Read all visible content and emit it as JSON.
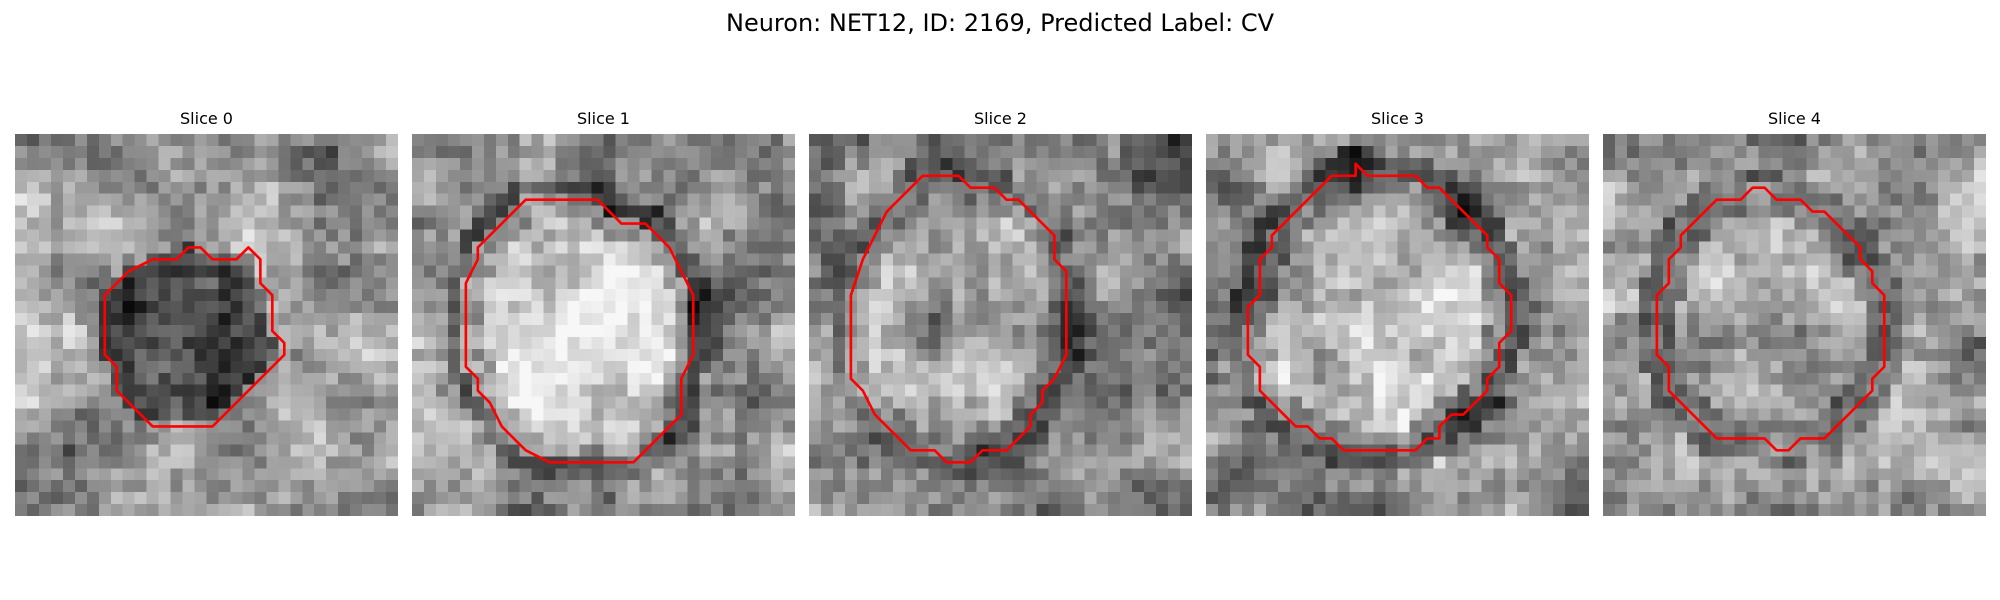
{
  "figure": {
    "title": "Neuron: NET12, ID: 2169, Predicted Label: CV"
  },
  "panels": [
    {
      "title": "Slice 0",
      "contour_color": "#ff0000",
      "contour": [
        [
          14.5,
          9.5
        ],
        [
          15.5,
          9.5
        ],
        [
          16.5,
          10.5
        ],
        [
          18.5,
          10.5
        ],
        [
          19.5,
          9.5
        ],
        [
          20.5,
          10.5
        ],
        [
          20.5,
          12.5
        ],
        [
          21.5,
          13.5
        ],
        [
          21.5,
          16.5
        ],
        [
          22.5,
          17.5
        ],
        [
          22.5,
          18.5
        ],
        [
          21.5,
          19.5
        ],
        [
          20.5,
          20.5
        ],
        [
          19.5,
          21.5
        ],
        [
          17.5,
          23.5
        ],
        [
          16.5,
          24.5
        ],
        [
          11.5,
          24.5
        ],
        [
          9.5,
          22.5
        ],
        [
          8.5,
          21.5
        ],
        [
          8.5,
          19.5
        ],
        [
          7.5,
          18.5
        ],
        [
          7.5,
          13.5
        ],
        [
          9.5,
          11.5
        ],
        [
          11.5,
          10.5
        ],
        [
          13.5,
          10.5
        ]
      ]
    },
    {
      "title": "Slice 1",
      "contour_color": "#ff0000",
      "contour": [
        [
          9.5,
          5.5
        ],
        [
          15.5,
          5.5
        ],
        [
          16.5,
          6.5
        ],
        [
          17.5,
          7.5
        ],
        [
          19.5,
          7.5
        ],
        [
          21.5,
          9.5
        ],
        [
          22.5,
          11.5
        ],
        [
          23.5,
          13.5
        ],
        [
          23.5,
          18.5
        ],
        [
          22.5,
          20.5
        ],
        [
          22.5,
          23.5
        ],
        [
          18.5,
          27.5
        ],
        [
          11.5,
          27.5
        ],
        [
          9.5,
          26.5
        ],
        [
          8.5,
          25.5
        ],
        [
          7.5,
          24.5
        ],
        [
          6.5,
          22.5
        ],
        [
          5.5,
          21.5
        ],
        [
          5.5,
          20.5
        ],
        [
          4.5,
          19.5
        ],
        [
          4.5,
          12.5
        ],
        [
          5.5,
          10.5
        ],
        [
          5.5,
          9.5
        ],
        [
          6.5,
          8.5
        ],
        [
          7.5,
          7.5
        ]
      ]
    },
    {
      "title": "Slice 2",
      "contour_color": "#ff0000",
      "contour": [
        [
          9.5,
          3.5
        ],
        [
          12.5,
          3.5
        ],
        [
          13.5,
          4.5
        ],
        [
          15.5,
          4.5
        ],
        [
          16.5,
          5.5
        ],
        [
          17.5,
          5.5
        ],
        [
          20.5,
          8.5
        ],
        [
          20.5,
          10.5
        ],
        [
          21.5,
          11.5
        ],
        [
          21.5,
          18.5
        ],
        [
          20.5,
          20.5
        ],
        [
          19.5,
          21.5
        ],
        [
          19.5,
          22.5
        ],
        [
          18.5,
          23.5
        ],
        [
          18.5,
          24.5
        ],
        [
          17.5,
          25.5
        ],
        [
          16.5,
          26.5
        ],
        [
          14.5,
          26.5
        ],
        [
          13.5,
          27.5
        ],
        [
          11.5,
          27.5
        ],
        [
          10.5,
          26.5
        ],
        [
          8.5,
          26.5
        ],
        [
          6.5,
          24.5
        ],
        [
          5.5,
          23.5
        ],
        [
          4.5,
          21.5
        ],
        [
          3.5,
          20.5
        ],
        [
          3.5,
          13.5
        ],
        [
          4.5,
          10.5
        ],
        [
          6.5,
          6.5
        ]
      ]
    },
    {
      "title": "Slice 3",
      "contour_color": "#ff0000",
      "contour": [
        [
          12.5,
          2.5
        ],
        [
          13.5,
          3.5
        ],
        [
          17.5,
          3.5
        ],
        [
          18.5,
          4.5
        ],
        [
          19.5,
          4.5
        ],
        [
          20.5,
          5.5
        ],
        [
          22.5,
          7.5
        ],
        [
          23.5,
          8.5
        ],
        [
          23.5,
          9.5
        ],
        [
          24.5,
          10.5
        ],
        [
          24.5,
          12.5
        ],
        [
          25.5,
          13.5
        ],
        [
          25.5,
          16.5
        ],
        [
          24.5,
          17.5
        ],
        [
          24.5,
          19.5
        ],
        [
          23.5,
          20.5
        ],
        [
          23.5,
          21.5
        ],
        [
          22.5,
          22.5
        ],
        [
          21.5,
          23.5
        ],
        [
          20.5,
          23.5
        ],
        [
          19.5,
          24.5
        ],
        [
          19.5,
          25.5
        ],
        [
          18.5,
          25.5
        ],
        [
          17.5,
          26.5
        ],
        [
          11.5,
          26.5
        ],
        [
          10.5,
          25.5
        ],
        [
          9.5,
          25.5
        ],
        [
          8.5,
          24.5
        ],
        [
          7.5,
          24.5
        ],
        [
          6.5,
          23.5
        ],
        [
          5.5,
          22.5
        ],
        [
          4.5,
          21.5
        ],
        [
          4.5,
          19.5
        ],
        [
          3.5,
          18.5
        ],
        [
          3.5,
          14.5
        ],
        [
          4.5,
          13.5
        ],
        [
          4.5,
          10.5
        ],
        [
          5.5,
          9.5
        ],
        [
          5.5,
          8.5
        ],
        [
          6.5,
          7.5
        ],
        [
          7.5,
          6.5
        ],
        [
          8.5,
          5.5
        ],
        [
          9.5,
          4.5
        ],
        [
          10.5,
          3.5
        ],
        [
          12.5,
          3.5
        ]
      ]
    },
    {
      "title": "Slice 4",
      "contour_color": "#ff0000",
      "contour": [
        [
          12.5,
          4.5
        ],
        [
          13.5,
          4.5
        ],
        [
          14.5,
          5.5
        ],
        [
          16.5,
          5.5
        ],
        [
          17.5,
          6.5
        ],
        [
          18.5,
          6.5
        ],
        [
          20.5,
          8.5
        ],
        [
          21.5,
          9.5
        ],
        [
          21.5,
          10.5
        ],
        [
          22.5,
          11.5
        ],
        [
          22.5,
          12.5
        ],
        [
          23.5,
          13.5
        ],
        [
          23.5,
          19.5
        ],
        [
          22.5,
          20.5
        ],
        [
          22.5,
          21.5
        ],
        [
          21.5,
          22.5
        ],
        [
          20.5,
          23.5
        ],
        [
          19.5,
          24.5
        ],
        [
          18.5,
          25.5
        ],
        [
          16.5,
          25.5
        ],
        [
          15.5,
          26.5
        ],
        [
          14.5,
          26.5
        ],
        [
          13.5,
          25.5
        ],
        [
          9.5,
          25.5
        ],
        [
          8.5,
          24.5
        ],
        [
          7.5,
          23.5
        ],
        [
          6.5,
          22.5
        ],
        [
          5.5,
          21.5
        ],
        [
          5.5,
          19.5
        ],
        [
          4.5,
          18.5
        ],
        [
          4.5,
          13.5
        ],
        [
          5.5,
          12.5
        ],
        [
          5.5,
          10.5
        ],
        [
          6.5,
          9.5
        ],
        [
          6.5,
          8.5
        ],
        [
          8.5,
          6.5
        ],
        [
          9.5,
          5.5
        ],
        [
          11.5,
          5.5
        ]
      ]
    }
  ]
}
